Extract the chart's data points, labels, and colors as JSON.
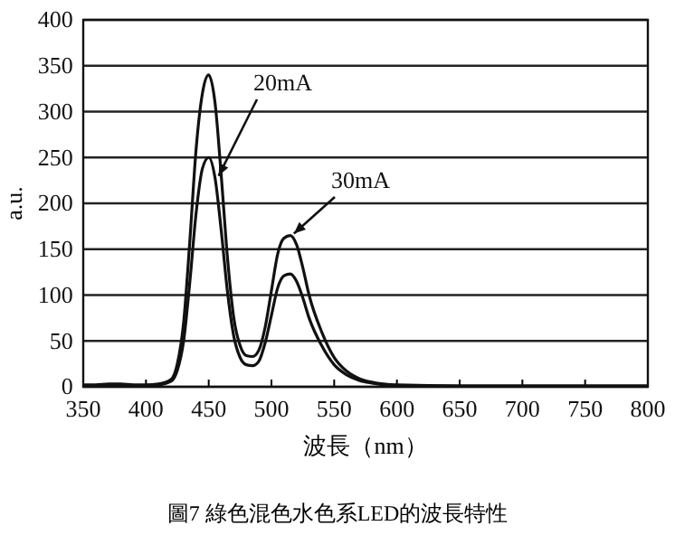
{
  "chart_data": {
    "type": "line",
    "xlabel": "波長（nm）",
    "ylabel": "a.u.",
    "xlim": [
      350,
      800
    ],
    "ylim": [
      0,
      400
    ],
    "xticks": [
      350,
      400,
      450,
      500,
      550,
      600,
      650,
      700,
      750,
      800
    ],
    "yticks": [
      0,
      50,
      100,
      150,
      200,
      250,
      300,
      350,
      400
    ],
    "grid": "y",
    "marker": "none",
    "line_style": "solid",
    "legend": "top",
    "series": [
      {
        "name": "20mA",
        "color": "#111111",
        "x": [
          350,
          400,
          410,
          420,
          425,
          430,
          435,
          440,
          445,
          450,
          455,
          460,
          465,
          470,
          475,
          480,
          485,
          490,
          495,
          500,
          505,
          510,
          515,
          520,
          525,
          530,
          540,
          550,
          560,
          570,
          580,
          600,
          700,
          800
        ],
        "values": [
          1,
          1,
          2,
          6,
          18,
          50,
          115,
          190,
          238,
          250,
          228,
          170,
          103,
          55,
          32,
          24,
          23,
          28,
          48,
          78,
          108,
          121,
          123,
          115,
          97,
          75,
          45,
          24,
          13,
          7,
          4,
          1,
          1,
          1
        ]
      },
      {
        "name": "30mA",
        "color": "#111111",
        "x": [
          350,
          360,
          370,
          380,
          390,
          400,
          410,
          420,
          425,
          430,
          435,
          440,
          445,
          450,
          455,
          460,
          465,
          470,
          475,
          480,
          485,
          490,
          495,
          500,
          505,
          510,
          515,
          520,
          525,
          530,
          540,
          550,
          560,
          570,
          580,
          600,
          650,
          700,
          750,
          800
        ],
        "values": [
          2,
          2,
          3,
          3,
          2,
          2,
          3,
          8,
          25,
          70,
          160,
          260,
          320,
          340,
          310,
          230,
          140,
          75,
          45,
          34,
          33,
          40,
          65,
          105,
          145,
          162,
          165,
          155,
          130,
          100,
          60,
          32,
          17,
          9,
          5,
          2,
          1,
          1,
          1,
          1
        ]
      }
    ],
    "annotations": [
      "圖7 綠色混色水色系LED的波長特性"
    ]
  }
}
